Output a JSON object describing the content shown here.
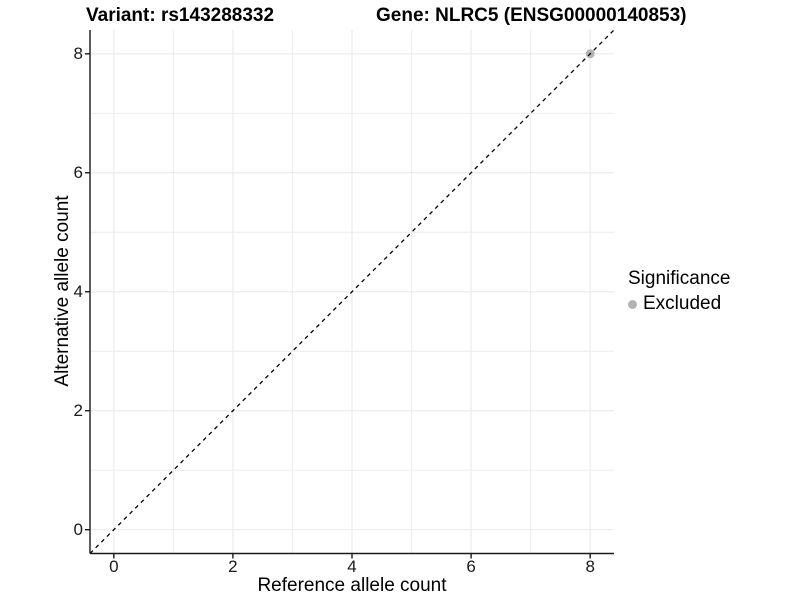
{
  "titles": {
    "variant": "Variant: rs143288332",
    "gene": "Gene: NLRC5 (ENSG00000140853)"
  },
  "axes": {
    "x_label": "Reference allele count",
    "y_label": "Alternative allele count"
  },
  "legend": {
    "title": "Significance",
    "items": [
      {
        "label": "Excluded",
        "color": "#b3b3b3"
      }
    ]
  },
  "colors": {
    "background": "#ffffff",
    "grid": "#ebebeb",
    "axis": "#1a1a1a",
    "text": "#000000",
    "reference_line": "#000000"
  },
  "chart_data": {
    "type": "scatter",
    "title": "Variant: rs143288332 / Gene: NLRC5 (ENSG00000140853)",
    "xlabel": "Reference allele count",
    "ylabel": "Alternative allele count",
    "xlim": [
      -0.4,
      8.4
    ],
    "ylim": [
      -0.4,
      8.4
    ],
    "x_ticks": [
      0,
      2,
      4,
      6,
      8
    ],
    "y_ticks": [
      0,
      2,
      4,
      6,
      8
    ],
    "x_minor_ticks": [
      1,
      3,
      5,
      7
    ],
    "y_minor_ticks": [
      1,
      3,
      5,
      7
    ],
    "grid": true,
    "legend_position": "right",
    "legend_title": "Significance",
    "series": [
      {
        "name": "Excluded",
        "color": "#b3b3b3",
        "points": [
          {
            "x": 8,
            "y": 8
          }
        ]
      }
    ],
    "reference_line": {
      "kind": "identity",
      "slope": 1,
      "intercept": 0,
      "style": "dashed",
      "color": "#000000"
    }
  }
}
